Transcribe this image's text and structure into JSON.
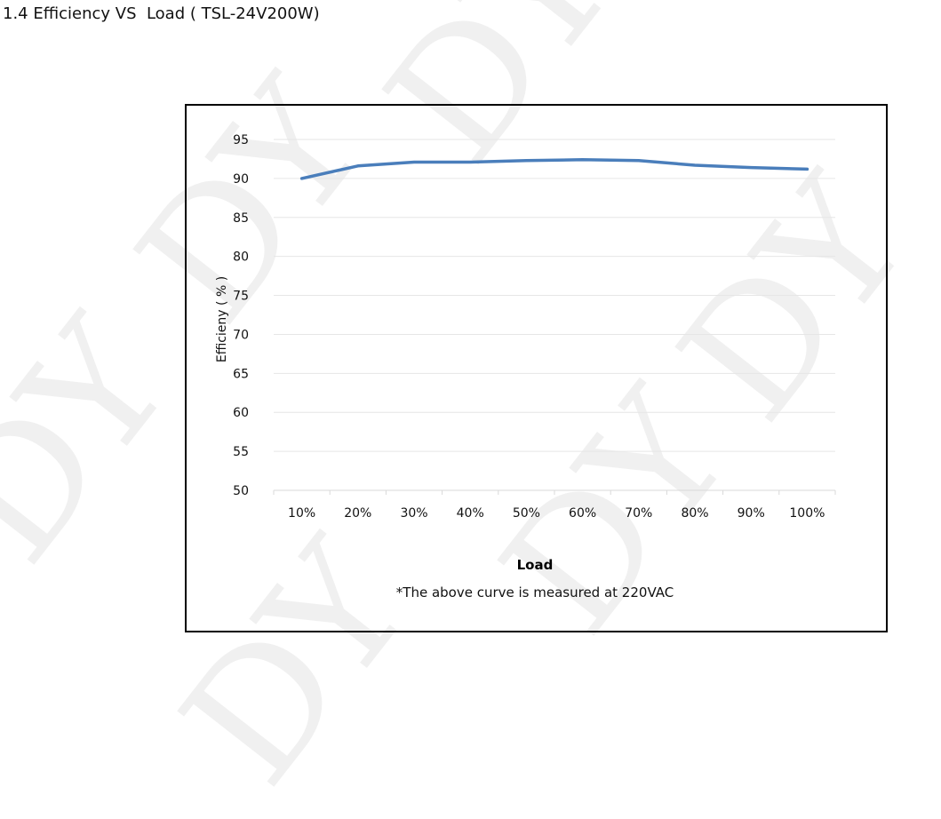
{
  "heading": "1.4 Efficiency VS  Load ( TSL-24V200W)",
  "watermark_text": "DY",
  "note": "*The above curve is measured at 220VAC",
  "colors": {
    "line": "#4a7ebb",
    "grid": "#e6e6e6",
    "frame": "#000000"
  },
  "chart_data": {
    "type": "line",
    "xlabel": "Load",
    "ylabel": "Efficieny ( % )",
    "categories": [
      "10%",
      "20%",
      "30%",
      "40%",
      "50%",
      "60%",
      "70%",
      "80%",
      "90%",
      "100%"
    ],
    "series": [
      {
        "values": [
          90.0,
          91.6,
          92.1,
          92.1,
          92.3,
          92.4,
          92.3,
          91.7,
          91.4,
          91.2
        ]
      }
    ],
    "ylim": [
      50,
      95
    ],
    "yticks": [
      50,
      55,
      60,
      65,
      70,
      75,
      80,
      85,
      90,
      95
    ],
    "grid": true,
    "legend": false
  }
}
